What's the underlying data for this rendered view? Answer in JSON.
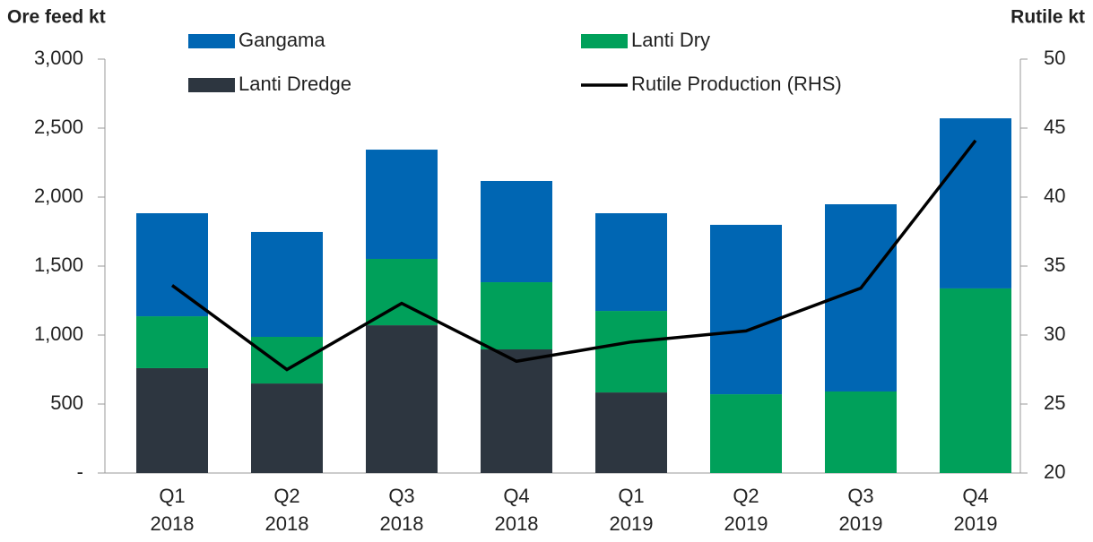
{
  "chart_data": {
    "type": "bar",
    "stacked": true,
    "y_label": "Ore feed kt",
    "y2_label": "Rutile kt",
    "categories": [
      [
        "Q1",
        "2018"
      ],
      [
        "Q2",
        "2018"
      ],
      [
        "Q3",
        "2018"
      ],
      [
        "Q4",
        "2018"
      ],
      [
        "Q1",
        "2019"
      ],
      [
        "Q2",
        "2019"
      ],
      [
        "Q3",
        "2019"
      ],
      [
        "Q4",
        "2019"
      ]
    ],
    "series": [
      {
        "name": "Gangama",
        "color": "#0066b3",
        "values": [
          747,
          760,
          792,
          734,
          708,
          1228,
          1357,
          1233
        ]
      },
      {
        "name": "Lanti Dry",
        "color": "#00a05a",
        "values": [
          376,
          338,
          481,
          487,
          591,
          571,
          591,
          1338
        ]
      },
      {
        "name": "Lanti Dredge",
        "color": "#2d3640",
        "values": [
          760,
          649,
          1071,
          896,
          584,
          0,
          0,
          0
        ]
      },
      {
        "name": "Rutile Production (RHS)",
        "color": "#000000",
        "type": "line",
        "axis": "y2",
        "values": [
          33.6,
          27.5,
          32.3,
          28.1,
          29.5,
          30.3,
          33.4,
          44.1
        ]
      }
    ],
    "ylim": [
      0,
      3000
    ],
    "yticks": [
      {
        "value": 0,
        "label": "-"
      },
      {
        "value": 500,
        "label": "500"
      },
      {
        "value": 1000,
        "label": "1,000"
      },
      {
        "value": 1500,
        "label": "1,500"
      },
      {
        "value": 2000,
        "label": "2,000"
      },
      {
        "value": 2500,
        "label": "2,500"
      },
      {
        "value": 3000,
        "label": "3,000"
      }
    ],
    "y2lim": [
      20,
      50
    ],
    "y2ticks": [
      20,
      25,
      30,
      35,
      40,
      45,
      50
    ],
    "grid": false
  }
}
